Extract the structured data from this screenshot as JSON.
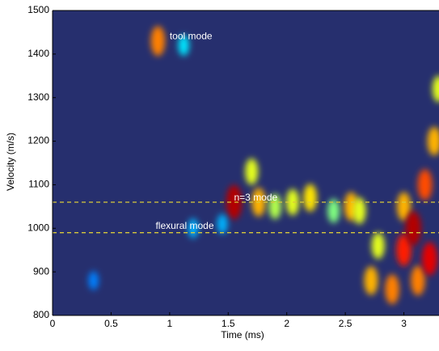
{
  "chart_data": {
    "type": "heatmap",
    "x_label": "Time (ms)",
    "y_label": "Velocity (m/s)",
    "xlim": [
      0,
      3.3
    ],
    "ylim": [
      800,
      1500
    ],
    "xticks": [
      0,
      0.5,
      1,
      1.5,
      2,
      2.5,
      3
    ],
    "yticks": [
      800,
      900,
      1000,
      1100,
      1200,
      1300,
      1400,
      1500
    ],
    "background": "#262f6e",
    "x": [
      0.9,
      1.12,
      1.55,
      1.7,
      1.76,
      1.9,
      2.05,
      2.2,
      2.4,
      2.55,
      2.62,
      2.72,
      2.78,
      2.9,
      3.0,
      3.0,
      3.08,
      3.12,
      3.18,
      3.22,
      3.26,
      3.3,
      1.2,
      0.35,
      1.45
    ],
    "values": [
      1430,
      1420,
      1060,
      1130,
      1060,
      1050,
      1060,
      1070,
      1040,
      1050,
      1040,
      880,
      960,
      860,
      1050,
      950,
      1000,
      880,
      1100,
      930,
      1200,
      1320,
      1000,
      880,
      1010
    ],
    "intensity": [
      0.75,
      0.35,
      0.95,
      0.6,
      0.7,
      0.55,
      0.6,
      0.65,
      0.5,
      0.7,
      0.6,
      0.7,
      0.6,
      0.75,
      0.7,
      0.85,
      0.95,
      0.75,
      0.8,
      0.9,
      0.7,
      0.6,
      0.3,
      0.25,
      0.3
    ],
    "hlines": [
      1060,
      990
    ],
    "hline_color": "#d9c93a",
    "annotations": [
      {
        "text": "tool mode",
        "x": 1.0,
        "y": 1440
      },
      {
        "text": "n=3 mode",
        "x": 1.55,
        "y": 1070
      },
      {
        "text": "flexural mode",
        "x": 0.88,
        "y": 1005
      }
    ]
  }
}
